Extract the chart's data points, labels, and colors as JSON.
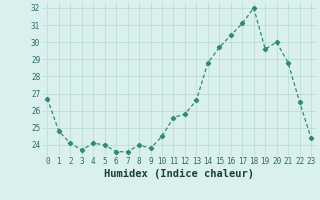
{
  "x": [
    0,
    1,
    2,
    3,
    4,
    5,
    6,
    7,
    8,
    9,
    10,
    11,
    12,
    13,
    14,
    15,
    16,
    17,
    18,
    19,
    20,
    21,
    22,
    23
  ],
  "y": [
    26.7,
    24.8,
    24.1,
    23.7,
    24.1,
    24.0,
    23.6,
    23.6,
    24.0,
    23.8,
    24.5,
    25.6,
    25.8,
    26.6,
    28.8,
    29.7,
    30.4,
    31.1,
    32.0,
    29.6,
    30.0,
    28.8,
    26.5,
    24.4
  ],
  "line_color": "#2e8b72",
  "marker": "D",
  "marker_size": 2.2,
  "bg_color": "#d9f0ef",
  "grid_color": "#b8d8d5",
  "xlabel": "Humidex (Indice chaleur)",
  "xlim": [
    -0.5,
    23.5
  ],
  "ylim": [
    23.35,
    32.35
  ],
  "yticks": [
    24,
    25,
    26,
    27,
    28,
    29,
    30,
    31,
    32
  ],
  "xticks": [
    0,
    1,
    2,
    3,
    4,
    5,
    6,
    7,
    8,
    9,
    10,
    11,
    12,
    13,
    14,
    15,
    16,
    17,
    18,
    19,
    20,
    21,
    22,
    23
  ],
  "tick_label_size": 5.5,
  "xlabel_size": 7.5,
  "tick_color": "#2e6b60",
  "xlabel_color": "#1a3d35",
  "linewidth": 0.9
}
